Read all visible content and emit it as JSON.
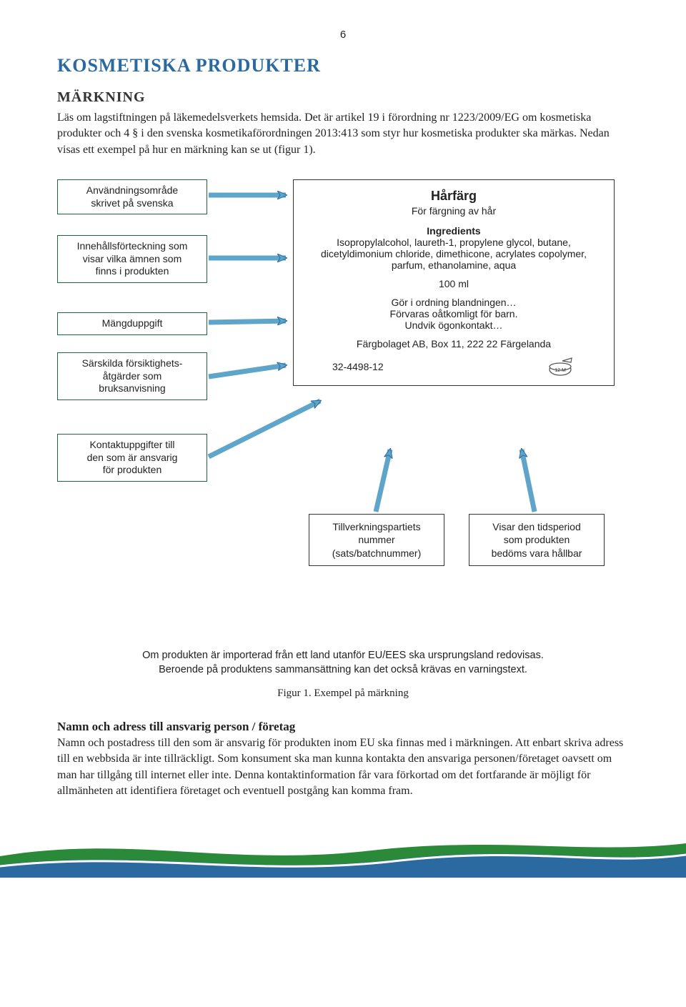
{
  "page_number": "6",
  "title": "KOSMETISKA PRODUKTER",
  "subtitle": "MÄRKNING",
  "intro": "Läs om lagstiftningen på läkemedelsverkets hemsida. Det är artikel 19 i förordning nr 1223/2009/EG om kosmetiska produkter och 4 § i den svenska kosmetikaförordningen 2013:413 som styr hur kosmetiska produkter ska märkas. Nedan visas ett exempel på hur en märkning kan se ut (figur 1).",
  "labels": {
    "usage": "Användningsområde\nskrivet på svenska",
    "ingredients": "Innehållsförteckning som\nvisar vilka ämnen som\nfinns i produkten",
    "amount": "Mängduppgift",
    "precautions": "Särskilda försiktighets-\nåtgärder som\nbruksanvisning",
    "contact": "Kontaktuppgifter till\nden som är ansvarig\nför produkten"
  },
  "product": {
    "title": "Hårfärg",
    "subtitle": "För färgning av hår",
    "ingredients_title": "Ingredients",
    "ingredients": "Isopropylalcohol, laureth-1, propylene glycol, butane, dicetyldimonium chloride, dimethicone, acrylates copolymer, parfum, ethanolamine, aqua",
    "amount": "100 ml",
    "instr1": "Gör i ordning blandningen…",
    "instr2": "Förvaras oåtkomligt för barn.",
    "instr3": "Undvik ögonkontakt…",
    "company": "Färgbolaget AB, Box 11, 222 22  Färgelanda",
    "batch": "32-4498-12",
    "pao": "12 M"
  },
  "bottom_boxes": {
    "batch": "Tillverkningspartiets\nnummer\n(sats/batchnummer)",
    "pao": "Visar den tidsperiod\nsom produkten\nbedöms vara hållbar"
  },
  "caption1": "Om produkten är importerad från ett land utanför EU/EES ska ursprungsland redovisas.",
  "caption2": "Beroende på produktens sammansättning kan det också krävas en varningstext.",
  "fig_caption": "Figur 1. Exempel på märkning",
  "section_title": "Namn och adress till ansvarig person / företag",
  "section_body": "Namn och postadress till den som är ansvarig för produkten inom EU ska finnas med i märkningen. Att enbart skriva adress till en webbsida är inte tillräckligt. Som konsument ska man kunna kontakta den ansvariga personen/företaget oavsett om man har tillgång till internet eller inte. Denna kontaktinformation får vara förkortad om det fortfarande är möjligt för allmänheten att identifiera företaget och eventuell postgång kan komma fram.",
  "colors": {
    "heading": "#2a6aa0",
    "label_border": "#1b6b3a",
    "arrow_fill": "#5fa5c9",
    "arrow_stroke": "#2a6aa0",
    "wave_green": "#2a8a3a",
    "wave_blue": "#2a6aa0"
  }
}
